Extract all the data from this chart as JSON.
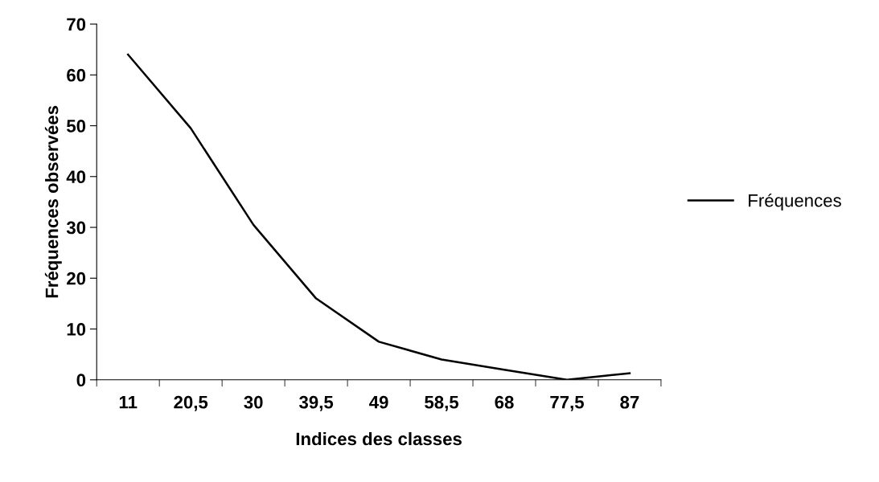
{
  "chart_data": {
    "type": "line",
    "xlabel": "Indices des classes",
    "ylabel": "Fréquences observées",
    "categories": [
      "11",
      "20,5",
      "30",
      "39,5",
      "49",
      "58,5",
      "68",
      "77,5",
      "87"
    ],
    "series": [
      {
        "name": "Fréquences",
        "color": "#000000",
        "values": [
          64,
          49.5,
          30.5,
          16,
          7.5,
          4,
          2,
          0,
          1.3
        ]
      }
    ],
    "ylim": [
      0,
      70
    ],
    "yticks": [
      0,
      10,
      20,
      30,
      40,
      50,
      60,
      70
    ],
    "grid": false,
    "legend": "right",
    "marker": "none",
    "line_style": "solid"
  }
}
